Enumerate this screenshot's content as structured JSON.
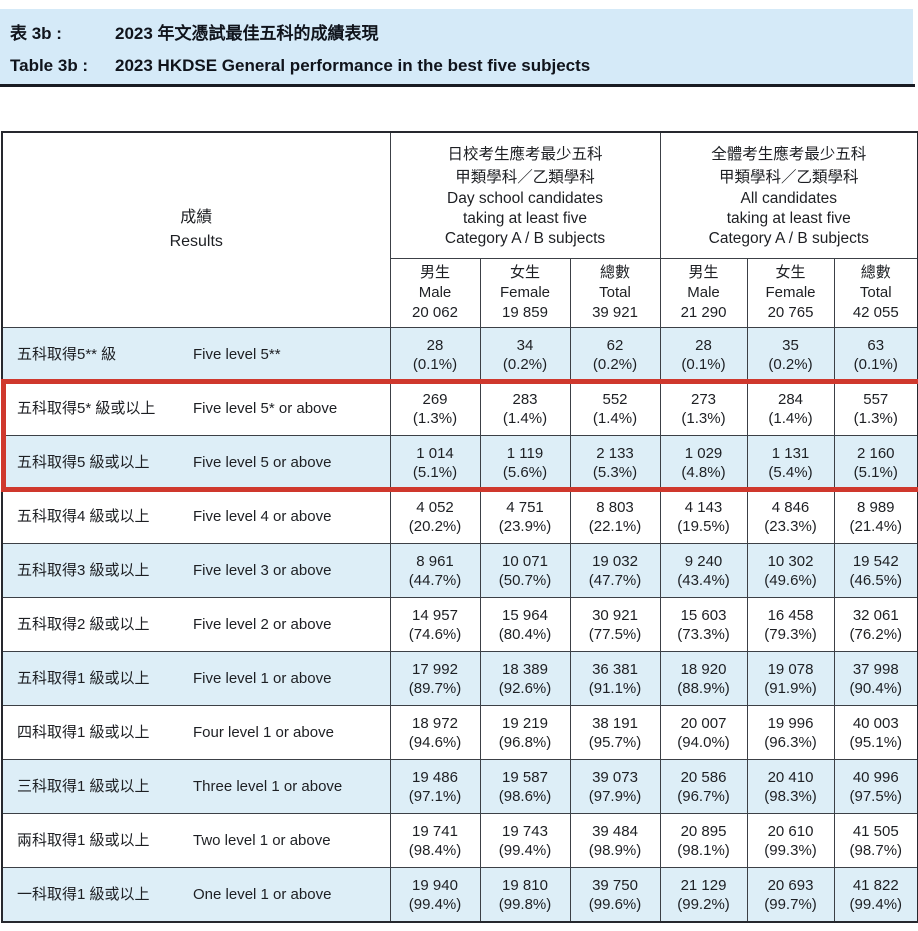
{
  "title": {
    "zh_label": "表 3b :",
    "zh_title": "2023 年文憑試最佳五科的成績表現",
    "en_label": "Table 3b :",
    "en_title": "2023 HKDSE General performance in the best five subjects"
  },
  "colors": {
    "banner_background": "#d5eaf8",
    "alt_row_background": "#ddeef7",
    "highlight_red": "#cf382d"
  },
  "table": {
    "results_header": {
      "zh": "成績",
      "en": "Results"
    },
    "groups": [
      {
        "lines": [
          "日校考生應考最少五科",
          "甲類學科／乙類學科",
          "Day school candidates",
          "taking at least five",
          "Category A / B subjects"
        ]
      },
      {
        "lines": [
          "全體考生應考最少五科",
          "甲類學科／乙類學科",
          "All candidates",
          "taking at least five",
          "Category A / B subjects"
        ]
      }
    ],
    "columns": [
      {
        "zh": "男生",
        "en": "Male",
        "count": "20 062"
      },
      {
        "zh": "女生",
        "en": "Female",
        "count": "19 859"
      },
      {
        "zh": "總數",
        "en": "Total",
        "count": "39 921"
      },
      {
        "zh": "男生",
        "en": "Male",
        "count": "21 290"
      },
      {
        "zh": "女生",
        "en": "Female",
        "count": "20 765"
      },
      {
        "zh": "總數",
        "en": "Total",
        "count": "42 055"
      }
    ],
    "rows": [
      {
        "zh": "五科取得5** 級",
        "en": "Five level 5**",
        "highlighted": false,
        "cells": [
          [
            "28",
            "(0.1%)"
          ],
          [
            "34",
            "(0.2%)"
          ],
          [
            "62",
            "(0.2%)"
          ],
          [
            "28",
            "(0.1%)"
          ],
          [
            "35",
            "(0.2%)"
          ],
          [
            "63",
            "(0.1%)"
          ]
        ]
      },
      {
        "zh": "五科取得5* 級或以上",
        "en": "Five level 5* or above",
        "highlighted": true,
        "cells": [
          [
            "269",
            "(1.3%)"
          ],
          [
            "283",
            "(1.4%)"
          ],
          [
            "552",
            "(1.4%)"
          ],
          [
            "273",
            "(1.3%)"
          ],
          [
            "284",
            "(1.4%)"
          ],
          [
            "557",
            "(1.3%)"
          ]
        ]
      },
      {
        "zh": "五科取得5 級或以上",
        "en": "Five level 5 or above",
        "highlighted": true,
        "cells": [
          [
            "1 014",
            "(5.1%)"
          ],
          [
            "1 119",
            "(5.6%)"
          ],
          [
            "2 133",
            "(5.3%)"
          ],
          [
            "1 029",
            "(4.8%)"
          ],
          [
            "1 131",
            "(5.4%)"
          ],
          [
            "2 160",
            "(5.1%)"
          ]
        ]
      },
      {
        "zh": "五科取得4 級或以上",
        "en": "Five level 4 or above",
        "highlighted": false,
        "cells": [
          [
            "4 052",
            "(20.2%)"
          ],
          [
            "4 751",
            "(23.9%)"
          ],
          [
            "8 803",
            "(22.1%)"
          ],
          [
            "4 143",
            "(19.5%)"
          ],
          [
            "4 846",
            "(23.3%)"
          ],
          [
            "8 989",
            "(21.4%)"
          ]
        ]
      },
      {
        "zh": "五科取得3 級或以上",
        "en": "Five level 3 or above",
        "highlighted": false,
        "cells": [
          [
            "8 961",
            "(44.7%)"
          ],
          [
            "10 071",
            "(50.7%)"
          ],
          [
            "19 032",
            "(47.7%)"
          ],
          [
            "9 240",
            "(43.4%)"
          ],
          [
            "10 302",
            "(49.6%)"
          ],
          [
            "19 542",
            "(46.5%)"
          ]
        ]
      },
      {
        "zh": "五科取得2 級或以上",
        "en": "Five level 2 or above",
        "highlighted": false,
        "cells": [
          [
            "14 957",
            "(74.6%)"
          ],
          [
            "15 964",
            "(80.4%)"
          ],
          [
            "30 921",
            "(77.5%)"
          ],
          [
            "15 603",
            "(73.3%)"
          ],
          [
            "16 458",
            "(79.3%)"
          ],
          [
            "32 061",
            "(76.2%)"
          ]
        ]
      },
      {
        "zh": "五科取得1 級或以上",
        "en": "Five level 1 or above",
        "highlighted": false,
        "cells": [
          [
            "17 992",
            "(89.7%)"
          ],
          [
            "18 389",
            "(92.6%)"
          ],
          [
            "36 381",
            "(91.1%)"
          ],
          [
            "18 920",
            "(88.9%)"
          ],
          [
            "19 078",
            "(91.9%)"
          ],
          [
            "37 998",
            "(90.4%)"
          ]
        ]
      },
      {
        "zh": "四科取得1 級或以上",
        "en": "Four level 1 or above",
        "highlighted": false,
        "cells": [
          [
            "18 972",
            "(94.6%)"
          ],
          [
            "19 219",
            "(96.8%)"
          ],
          [
            "38 191",
            "(95.7%)"
          ],
          [
            "20 007",
            "(94.0%)"
          ],
          [
            "19 996",
            "(96.3%)"
          ],
          [
            "40 003",
            "(95.1%)"
          ]
        ]
      },
      {
        "zh": "三科取得1 級或以上",
        "en": "Three level 1 or above",
        "highlighted": false,
        "cells": [
          [
            "19 486",
            "(97.1%)"
          ],
          [
            "19 587",
            "(98.6%)"
          ],
          [
            "39 073",
            "(97.9%)"
          ],
          [
            "20 586",
            "(96.7%)"
          ],
          [
            "20 410",
            "(98.3%)"
          ],
          [
            "40 996",
            "(97.5%)"
          ]
        ]
      },
      {
        "zh": "兩科取得1 級或以上",
        "en": "Two level 1 or above",
        "highlighted": false,
        "cells": [
          [
            "19 741",
            "(98.4%)"
          ],
          [
            "19 743",
            "(99.4%)"
          ],
          [
            "39 484",
            "(98.9%)"
          ],
          [
            "20 895",
            "(98.1%)"
          ],
          [
            "20 610",
            "(99.3%)"
          ],
          [
            "41 505",
            "(98.7%)"
          ]
        ]
      },
      {
        "zh": "一科取得1 級或以上",
        "en": "One level 1 or above",
        "highlighted": false,
        "cells": [
          [
            "19 940",
            "(99.4%)"
          ],
          [
            "19 810",
            "(99.8%)"
          ],
          [
            "39 750",
            "(99.6%)"
          ],
          [
            "21 129",
            "(99.2%)"
          ],
          [
            "20 693",
            "(99.7%)"
          ],
          [
            "41 822",
            "(99.4%)"
          ]
        ]
      }
    ]
  }
}
